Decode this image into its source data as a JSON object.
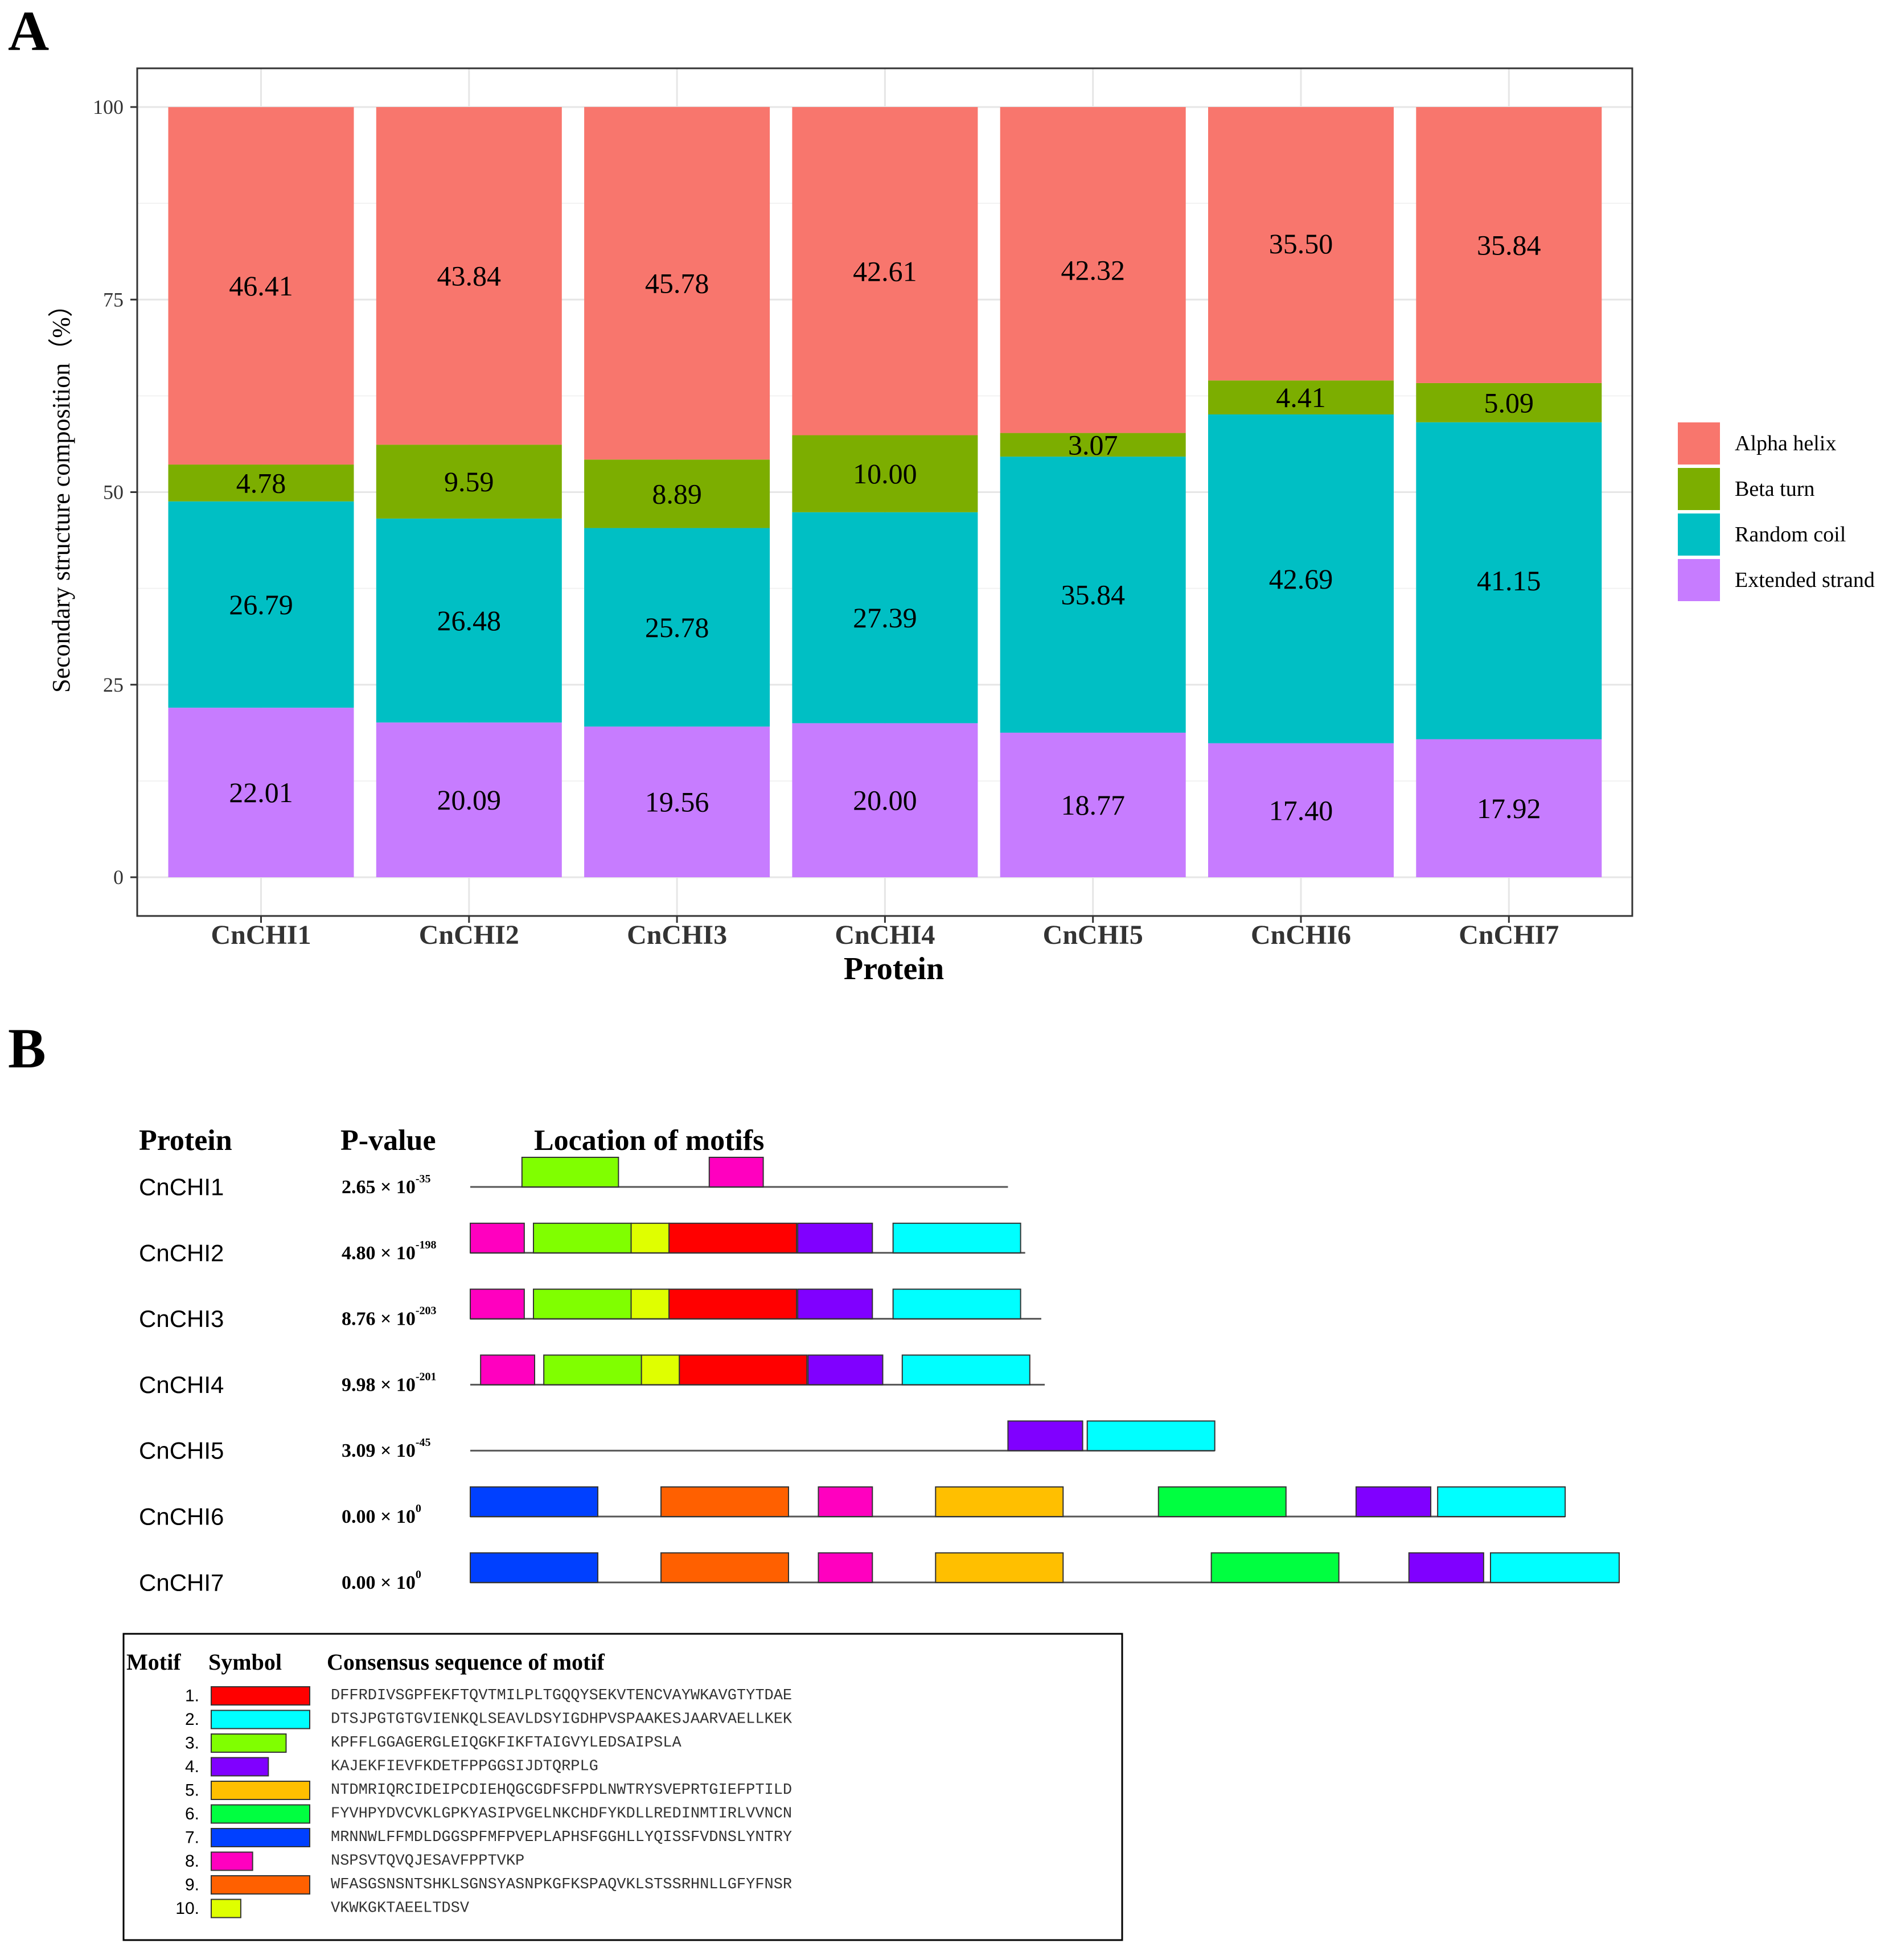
{
  "panel_a": {
    "label": "A"
  },
  "panel_b": {
    "label": "B",
    "header_protein": "Protein",
    "header_pvalue": "P-value",
    "header_location": "Location of motifs",
    "rows": [
      {
        "protein": "CnCHI1",
        "p_mant": "2.65 × 10",
        "p_exp": "-35",
        "length": 0.468,
        "motifs": [
          {
            "m": 3,
            "s": 0.045,
            "e": 0.129
          },
          {
            "m": 8,
            "s": 0.208,
            "e": 0.255
          }
        ]
      },
      {
        "protein": "CnCHI2",
        "p_mant": "4.80 × 10",
        "p_exp": "-198",
        "length": 0.483,
        "motifs": [
          {
            "m": 8,
            "s": 0.0,
            "e": 0.047
          },
          {
            "m": 3,
            "s": 0.055,
            "e": 0.14
          },
          {
            "m": 10,
            "s": 0.14,
            "e": 0.173
          },
          {
            "m": 1,
            "s": 0.173,
            "e": 0.284
          },
          {
            "m": 4,
            "s": 0.285,
            "e": 0.35
          },
          {
            "m": 2,
            "s": 0.368,
            "e": 0.479
          }
        ]
      },
      {
        "protein": "CnCHI3",
        "p_mant": "8.76 × 10",
        "p_exp": "-203",
        "length": 0.497,
        "motifs": [
          {
            "m": 8,
            "s": 0.0,
            "e": 0.047
          },
          {
            "m": 3,
            "s": 0.055,
            "e": 0.14
          },
          {
            "m": 10,
            "s": 0.14,
            "e": 0.173
          },
          {
            "m": 1,
            "s": 0.173,
            "e": 0.284
          },
          {
            "m": 4,
            "s": 0.285,
            "e": 0.35
          },
          {
            "m": 2,
            "s": 0.368,
            "e": 0.479
          }
        ]
      },
      {
        "protein": "CnCHI4",
        "p_mant": "9.98 × 10",
        "p_exp": "-201",
        "length": 0.5,
        "motifs": [
          {
            "m": 8,
            "s": 0.009,
            "e": 0.056
          },
          {
            "m": 3,
            "s": 0.064,
            "e": 0.149
          },
          {
            "m": 10,
            "s": 0.149,
            "e": 0.182
          },
          {
            "m": 1,
            "s": 0.182,
            "e": 0.293
          },
          {
            "m": 4,
            "s": 0.294,
            "e": 0.359
          },
          {
            "m": 2,
            "s": 0.376,
            "e": 0.487
          }
        ]
      },
      {
        "protein": "CnCHI5",
        "p_mant": "3.09 × 10",
        "p_exp": "-45",
        "length": 0.648,
        "motifs": [
          {
            "m": 4,
            "s": 0.468,
            "e": 0.533
          },
          {
            "m": 2,
            "s": 0.537,
            "e": 0.648
          }
        ]
      },
      {
        "protein": "CnCHI6",
        "p_mant": "0.00 × 10",
        "p_exp": "0",
        "length": 0.953,
        "motifs": [
          {
            "m": 7,
            "s": 0.0,
            "e": 0.111
          },
          {
            "m": 9,
            "s": 0.166,
            "e": 0.277
          },
          {
            "m": 8,
            "s": 0.303,
            "e": 0.35
          },
          {
            "m": 5,
            "s": 0.405,
            "e": 0.516
          },
          {
            "m": 6,
            "s": 0.599,
            "e": 0.71
          },
          {
            "m": 4,
            "s": 0.771,
            "e": 0.836
          },
          {
            "m": 2,
            "s": 0.842,
            "e": 0.953
          }
        ]
      },
      {
        "protein": "CnCHI7",
        "p_mant": "0.00 × 10",
        "p_exp": "0",
        "length": 1.0,
        "motifs": [
          {
            "m": 7,
            "s": 0.0,
            "e": 0.111
          },
          {
            "m": 9,
            "s": 0.166,
            "e": 0.277
          },
          {
            "m": 8,
            "s": 0.303,
            "e": 0.35
          },
          {
            "m": 5,
            "s": 0.405,
            "e": 0.516
          },
          {
            "m": 6,
            "s": 0.645,
            "e": 0.756
          },
          {
            "m": 4,
            "s": 0.817,
            "e": 0.882
          },
          {
            "m": 2,
            "s": 0.888,
            "e": 1.0
          }
        ]
      }
    ],
    "legend": {
      "header_motif": "Motif",
      "header_symbol": "Symbol",
      "header_consensus": "Consensus sequence of motif",
      "motifs": [
        {
          "num": "1.",
          "color": "#ff0000",
          "rel_len": 1.0,
          "seq": "DFFRDIVSGPFEKFTQVTMILPLTGQQYSEKVTENCVAYWKAVGTYTDAE"
        },
        {
          "num": "2.",
          "color": "#00ffff",
          "rel_len": 1.0,
          "seq": "DTSJPGTGTGVIENKQLSEAVLDSYIGDHPVSPAAKESJAARVAELLKEK"
        },
        {
          "num": "3.",
          "color": "#80ff00",
          "rel_len": 0.76,
          "seq": "KPFFLGGAGERGLEIQGKFIKFTAIGVYLEDSAIPSLA"
        },
        {
          "num": "4.",
          "color": "#8000ff",
          "rel_len": 0.58,
          "seq": "KAJEKFIEVFKDETFPPGGSIJDTQRPLG"
        },
        {
          "num": "5.",
          "color": "#ffbf00",
          "rel_len": 1.0,
          "seq": "NTDMRIQRCIDEIPCDIEHQGCGDFSFPDLNWTRYSVEPRTGIEFPTILD"
        },
        {
          "num": "6.",
          "color": "#00ff40",
          "rel_len": 1.0,
          "seq": "FYVHPYDVCVKLGPKYASIPVGELNKCHDFYKDLLREDINMTIRLVVNCN"
        },
        {
          "num": "7.",
          "color": "#0040ff",
          "rel_len": 1.0,
          "seq": "MRNNWLFFMDLDGGSPFMFPVEPLAPHSFGGHLLYQISSFVDNSLYNTRY"
        },
        {
          "num": "8.",
          "color": "#ff00bf",
          "rel_len": 0.42,
          "seq": "NSPSVTQVQJESAVFPPTVKP"
        },
        {
          "num": "9.",
          "color": "#ff6000",
          "rel_len": 1.0,
          "seq": "WFASGSNSNTSHKLSGNSYASNPKGFKSPAQVKLSTSSRHNLLGFYFNSR"
        },
        {
          "num": "10.",
          "color": "#dfff00",
          "rel_len": 0.3,
          "seq": "VKWKGKTAEELTDSV"
        }
      ]
    }
  },
  "chart_data": {
    "type": "bar",
    "stacked": true,
    "categories": [
      "CnCHI1",
      "CnCHI2",
      "CnCHI3",
      "CnCHI4",
      "CnCHI5",
      "CnCHI6",
      "CnCHI7"
    ],
    "series": [
      {
        "name": "Extended strand",
        "color": "#c77cff",
        "values": [
          22.01,
          20.09,
          19.56,
          20.0,
          18.77,
          17.4,
          17.92
        ],
        "labels": [
          "22.01",
          "20.09",
          "19.56",
          "20.00",
          "18.77",
          "17.40",
          "17.92"
        ]
      },
      {
        "name": "Random coil",
        "color": "#00bfc4",
        "values": [
          26.79,
          26.48,
          25.78,
          27.39,
          35.84,
          42.69,
          41.15
        ],
        "labels": [
          "26.79",
          "26.48",
          "25.78",
          "27.39",
          "35.84",
          "42.69",
          "41.15"
        ]
      },
      {
        "name": "Beta turn",
        "color": "#7cae00",
        "values": [
          4.78,
          9.59,
          8.89,
          10.0,
          3.07,
          4.41,
          5.09
        ],
        "labels": [
          "4.78",
          "9.59",
          "8.89",
          "10.00",
          "3.07",
          "4.41",
          "5.09"
        ]
      },
      {
        "name": "Alpha helix",
        "color": "#f8766d",
        "values": [
          46.41,
          43.84,
          45.78,
          42.61,
          42.32,
          35.5,
          35.84
        ],
        "labels": [
          "46.41",
          "43.84",
          "45.78",
          "42.61",
          "42.32",
          "35.50",
          "35.84"
        ]
      }
    ],
    "legend_order": [
      "Alpha helix",
      "Beta turn",
      "Random coil",
      "Extended strand"
    ],
    "ylabel": "Secondary structure composition（%）",
    "xlabel": "Protein",
    "ylim": [
      0,
      100
    ],
    "yticks": [
      0,
      25,
      50,
      75,
      100
    ],
    "ytick_labels": [
      "0",
      "25",
      "50",
      "75",
      "100"
    ],
    "grid": true,
    "legend_position": "right"
  }
}
